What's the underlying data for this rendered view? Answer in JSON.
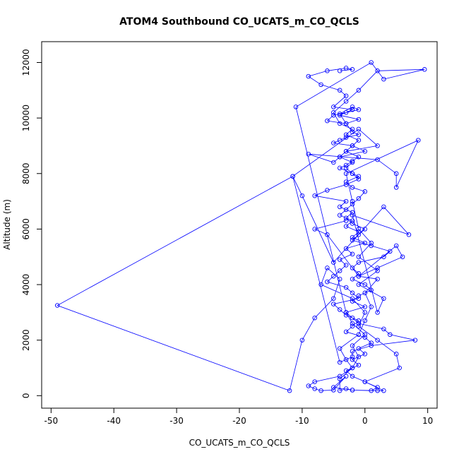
{
  "chart_data": {
    "type": "line",
    "title": "ATOM4 Southbound CO_UCATS_m_CO_QCLS",
    "xlabel": "CO_UCATS_m_CO_QCLS",
    "ylabel": "Altitude (m)",
    "xlim": [
      -51.5,
      11.5
    ],
    "ylim": [
      -450,
      12750
    ],
    "xticks": [
      -50,
      -40,
      -30,
      -20,
      -10,
      0,
      10
    ],
    "yticks": [
      0,
      2000,
      4000,
      6000,
      8000,
      10000,
      12000
    ],
    "grid": false,
    "legend": "none",
    "colors": {
      "series": "#0000ff",
      "axis": "#000000"
    },
    "marker": "open-circle",
    "series": [
      {
        "x": [
          -4,
          -2,
          -3,
          -6,
          -9,
          -7,
          -4,
          -3,
          -5,
          -2,
          -4,
          -1,
          -3,
          -6,
          -5,
          -3,
          -1,
          -2,
          -4,
          -3,
          -2,
          -1,
          -3,
          -4,
          -5,
          -2,
          -3,
          -1,
          -2,
          -3,
          -4,
          -2,
          -1,
          -3,
          -2,
          0,
          -1,
          -2,
          -3,
          -4,
          -2,
          -3,
          -1,
          -2,
          0,
          -3,
          -2,
          -4,
          -3,
          -4,
          -5,
          -6,
          -3,
          -2,
          -1,
          -5,
          -4,
          -3,
          -1,
          -2,
          -3,
          0,
          1,
          -1,
          0,
          -2,
          -1,
          -3,
          -2,
          0,
          2,
          1,
          -2,
          -3,
          -4,
          -4,
          -2,
          -1,
          -2,
          0,
          -2,
          -3,
          -11,
          1,
          3,
          9.5,
          2,
          -1,
          -3,
          -5,
          -4,
          -2,
          -3,
          -1,
          -2,
          0,
          -4,
          -2,
          -3,
          -2,
          -1,
          -3,
          -6,
          -8,
          -3,
          -4,
          -2,
          -3,
          -2,
          0,
          -1,
          -2,
          1,
          4,
          3,
          -1,
          -2,
          -1,
          -2,
          0,
          1,
          -1,
          -2,
          0,
          -3,
          -2,
          -1,
          3,
          4,
          8,
          1,
          -2,
          -2,
          -4,
          -11.5,
          -1,
          2,
          -3,
          -4,
          -5,
          -9,
          2,
          5,
          5,
          8.5,
          -3,
          -2,
          -1,
          1,
          -1,
          2,
          -1,
          3,
          2,
          -2,
          7,
          3,
          -5,
          -10,
          -11.5,
          -49,
          -12,
          -10,
          -8,
          -5,
          -4,
          -6,
          -7,
          -2,
          0,
          -1,
          2,
          5,
          5.5,
          0,
          3,
          2,
          -2,
          -5,
          -3,
          -5,
          -7,
          -8,
          -9,
          -8,
          -4,
          -2,
          -3,
          -4,
          -1,
          0,
          1,
          0,
          2,
          -1,
          2,
          6,
          5,
          -1,
          -6,
          -8,
          -3
        ],
        "y": [
          11700,
          11750,
          11800,
          11700,
          11500,
          11200,
          11000,
          10800,
          10400,
          10300,
          10100,
          9950,
          9800,
          9900,
          10100,
          10200,
          10300,
          10400,
          10150,
          9800,
          9500,
          9400,
          9300,
          9200,
          9100,
          9000,
          8800,
          8600,
          8450,
          8300,
          8200,
          8000,
          7900,
          7700,
          7500,
          7350,
          7100,
          6900,
          6700,
          6500,
          6300,
          6100,
          5900,
          5700,
          5500,
          5300,
          5100,
          4900,
          4700,
          4500,
          4300,
          4100,
          3900,
          3700,
          3500,
          3300,
          3100,
          2900,
          2700,
          2500,
          2300,
          2100,
          1900,
          1700,
          1500,
          1300,
          1100,
          900,
          700,
          500,
          300,
          180,
          200,
          250,
          180,
          600,
          1000,
          1400,
          1800,
          2200,
          2600,
          3000,
          10400,
          12000,
          11400,
          11750,
          11700,
          11000,
          10600,
          10200,
          9800,
          9600,
          9400,
          9200,
          9000,
          8800,
          8600,
          8400,
          8200,
          8000,
          7800,
          7600,
          7400,
          7200,
          7000,
          6800,
          6600,
          6400,
          6200,
          6000,
          5800,
          5600,
          5400,
          5200,
          5000,
          4800,
          4600,
          4400,
          4200,
          4000,
          3800,
          3600,
          3400,
          3200,
          3000,
          2800,
          2600,
          2400,
          2200,
          2000,
          1800,
          1600,
          1400,
          1200,
          7900,
          9600,
          9000,
          8800,
          8600,
          8400,
          8700,
          8500,
          8000,
          7500,
          9200,
          8000,
          7000,
          6000,
          5500,
          5000,
          4500,
          4000,
          3500,
          3000,
          6500,
          5800,
          6800,
          4800,
          7200,
          7900,
          3250,
          180,
          2000,
          2800,
          3500,
          4200,
          4600,
          4000,
          3500,
          3000,
          2500,
          2000,
          1500,
          1000,
          500,
          180,
          180,
          200,
          300,
          700,
          200,
          180,
          250,
          350,
          500,
          700,
          1000,
          1300,
          1700,
          2200,
          2700,
          3200,
          3700,
          4200,
          4300,
          4600,
          5000,
          5400,
          4300,
          5800,
          6000,
          6300
        ]
      }
    ]
  }
}
